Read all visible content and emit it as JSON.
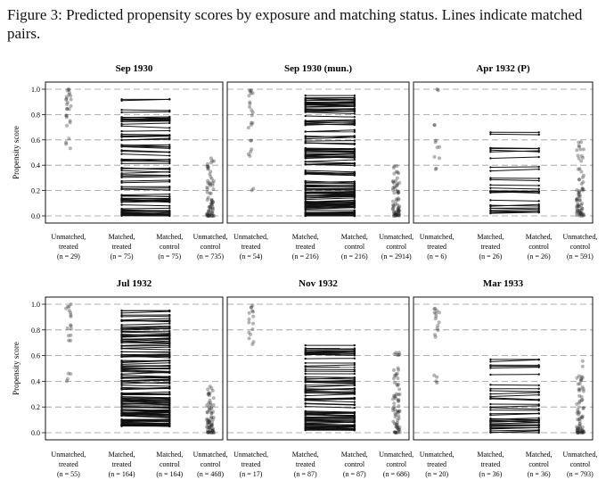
{
  "caption": "Figure 3:  Predicted propensity scores by exposure and matching status.  Lines indicate matched pairs.",
  "chart_data": {
    "type": "scatter",
    "ylabel": "Propensity score",
    "ylim": [
      0,
      1
    ],
    "yticks": [
      "0.0",
      "0.2",
      "0.4",
      "0.6",
      "0.8",
      "1.0"
    ],
    "grid": "dashed horizontal",
    "categories": [
      {
        "line1": "Unmatched,",
        "line2": "treated"
      },
      {
        "line1": "Matched,",
        "line2": "treated"
      },
      {
        "line1": "Matched,",
        "line2": "control"
      },
      {
        "line1": "Unmatched,",
        "line2": "control"
      }
    ],
    "panels": [
      {
        "title": "Sep 1930",
        "counts": [
          "(n = 29)",
          "(n = 75)",
          "(n = 75)",
          "(n = 735)"
        ],
        "unmatched_treated": [
          0.55,
          0.6,
          0.72,
          0.76,
          0.8,
          0.83,
          0.85,
          0.88,
          0.9,
          0.93,
          0.95,
          0.97,
          1.0
        ],
        "matched_range": [
          0.0,
          0.92
        ],
        "unmatched_control_range": [
          0.0,
          0.5
        ]
      },
      {
        "title": "Sep 1930 (mun.)",
        "counts": [
          "(n = 54)",
          "(n = 216)",
          "(n = 216)",
          "(n = 2914)"
        ],
        "unmatched_treated": [
          0.2,
          0.48,
          0.52,
          0.6,
          0.7,
          0.75,
          0.8,
          0.85,
          0.9,
          0.95,
          0.98,
          1.0
        ],
        "matched_range": [
          0.0,
          0.95
        ],
        "unmatched_control_range": [
          0.0,
          0.42
        ]
      },
      {
        "title": "Apr 1932 (P)",
        "counts": [
          "(n = 6)",
          "(n = 26)",
          "(n = 26)",
          "(n = 591)"
        ],
        "unmatched_treated": [
          0.38,
          0.45,
          0.55,
          0.58,
          0.72,
          1.0
        ],
        "matched_range": [
          0.02,
          0.66
        ],
        "unmatched_control_range": [
          0.0,
          0.6
        ]
      },
      {
        "title": "Jul 1932",
        "counts": [
          "(n = 55)",
          "(n = 164)",
          "(n = 164)",
          "(n = 468)"
        ],
        "unmatched_treated": [
          0.42,
          0.47,
          0.72,
          0.75,
          0.8,
          0.85,
          0.9,
          0.95,
          0.97,
          1.0
        ],
        "matched_range": [
          0.05,
          0.95
        ],
        "unmatched_control_range": [
          0.0,
          0.36
        ]
      },
      {
        "title": "Nov 1932",
        "counts": [
          "(n = 17)",
          "(n = 87)",
          "(n = 87)",
          "(n = 686)"
        ],
        "unmatched_treated": [
          0.7,
          0.75,
          0.8,
          0.85,
          0.9,
          0.93,
          0.96,
          0.98
        ],
        "matched_range": [
          0.02,
          0.68
        ],
        "unmatched_control_range": [
          0.0,
          0.65
        ]
      },
      {
        "title": "Mar 1933",
        "counts": [
          "(n = 20)",
          "(n = 36)",
          "(n = 36)",
          "(n = 793)"
        ],
        "unmatched_treated": [
          0.4,
          0.45,
          0.75,
          0.8,
          0.85,
          0.9,
          0.93,
          0.95,
          0.97
        ],
        "matched_range": [
          0.0,
          0.57
        ],
        "unmatched_control_range": [
          0.0,
          0.6
        ]
      }
    ]
  }
}
